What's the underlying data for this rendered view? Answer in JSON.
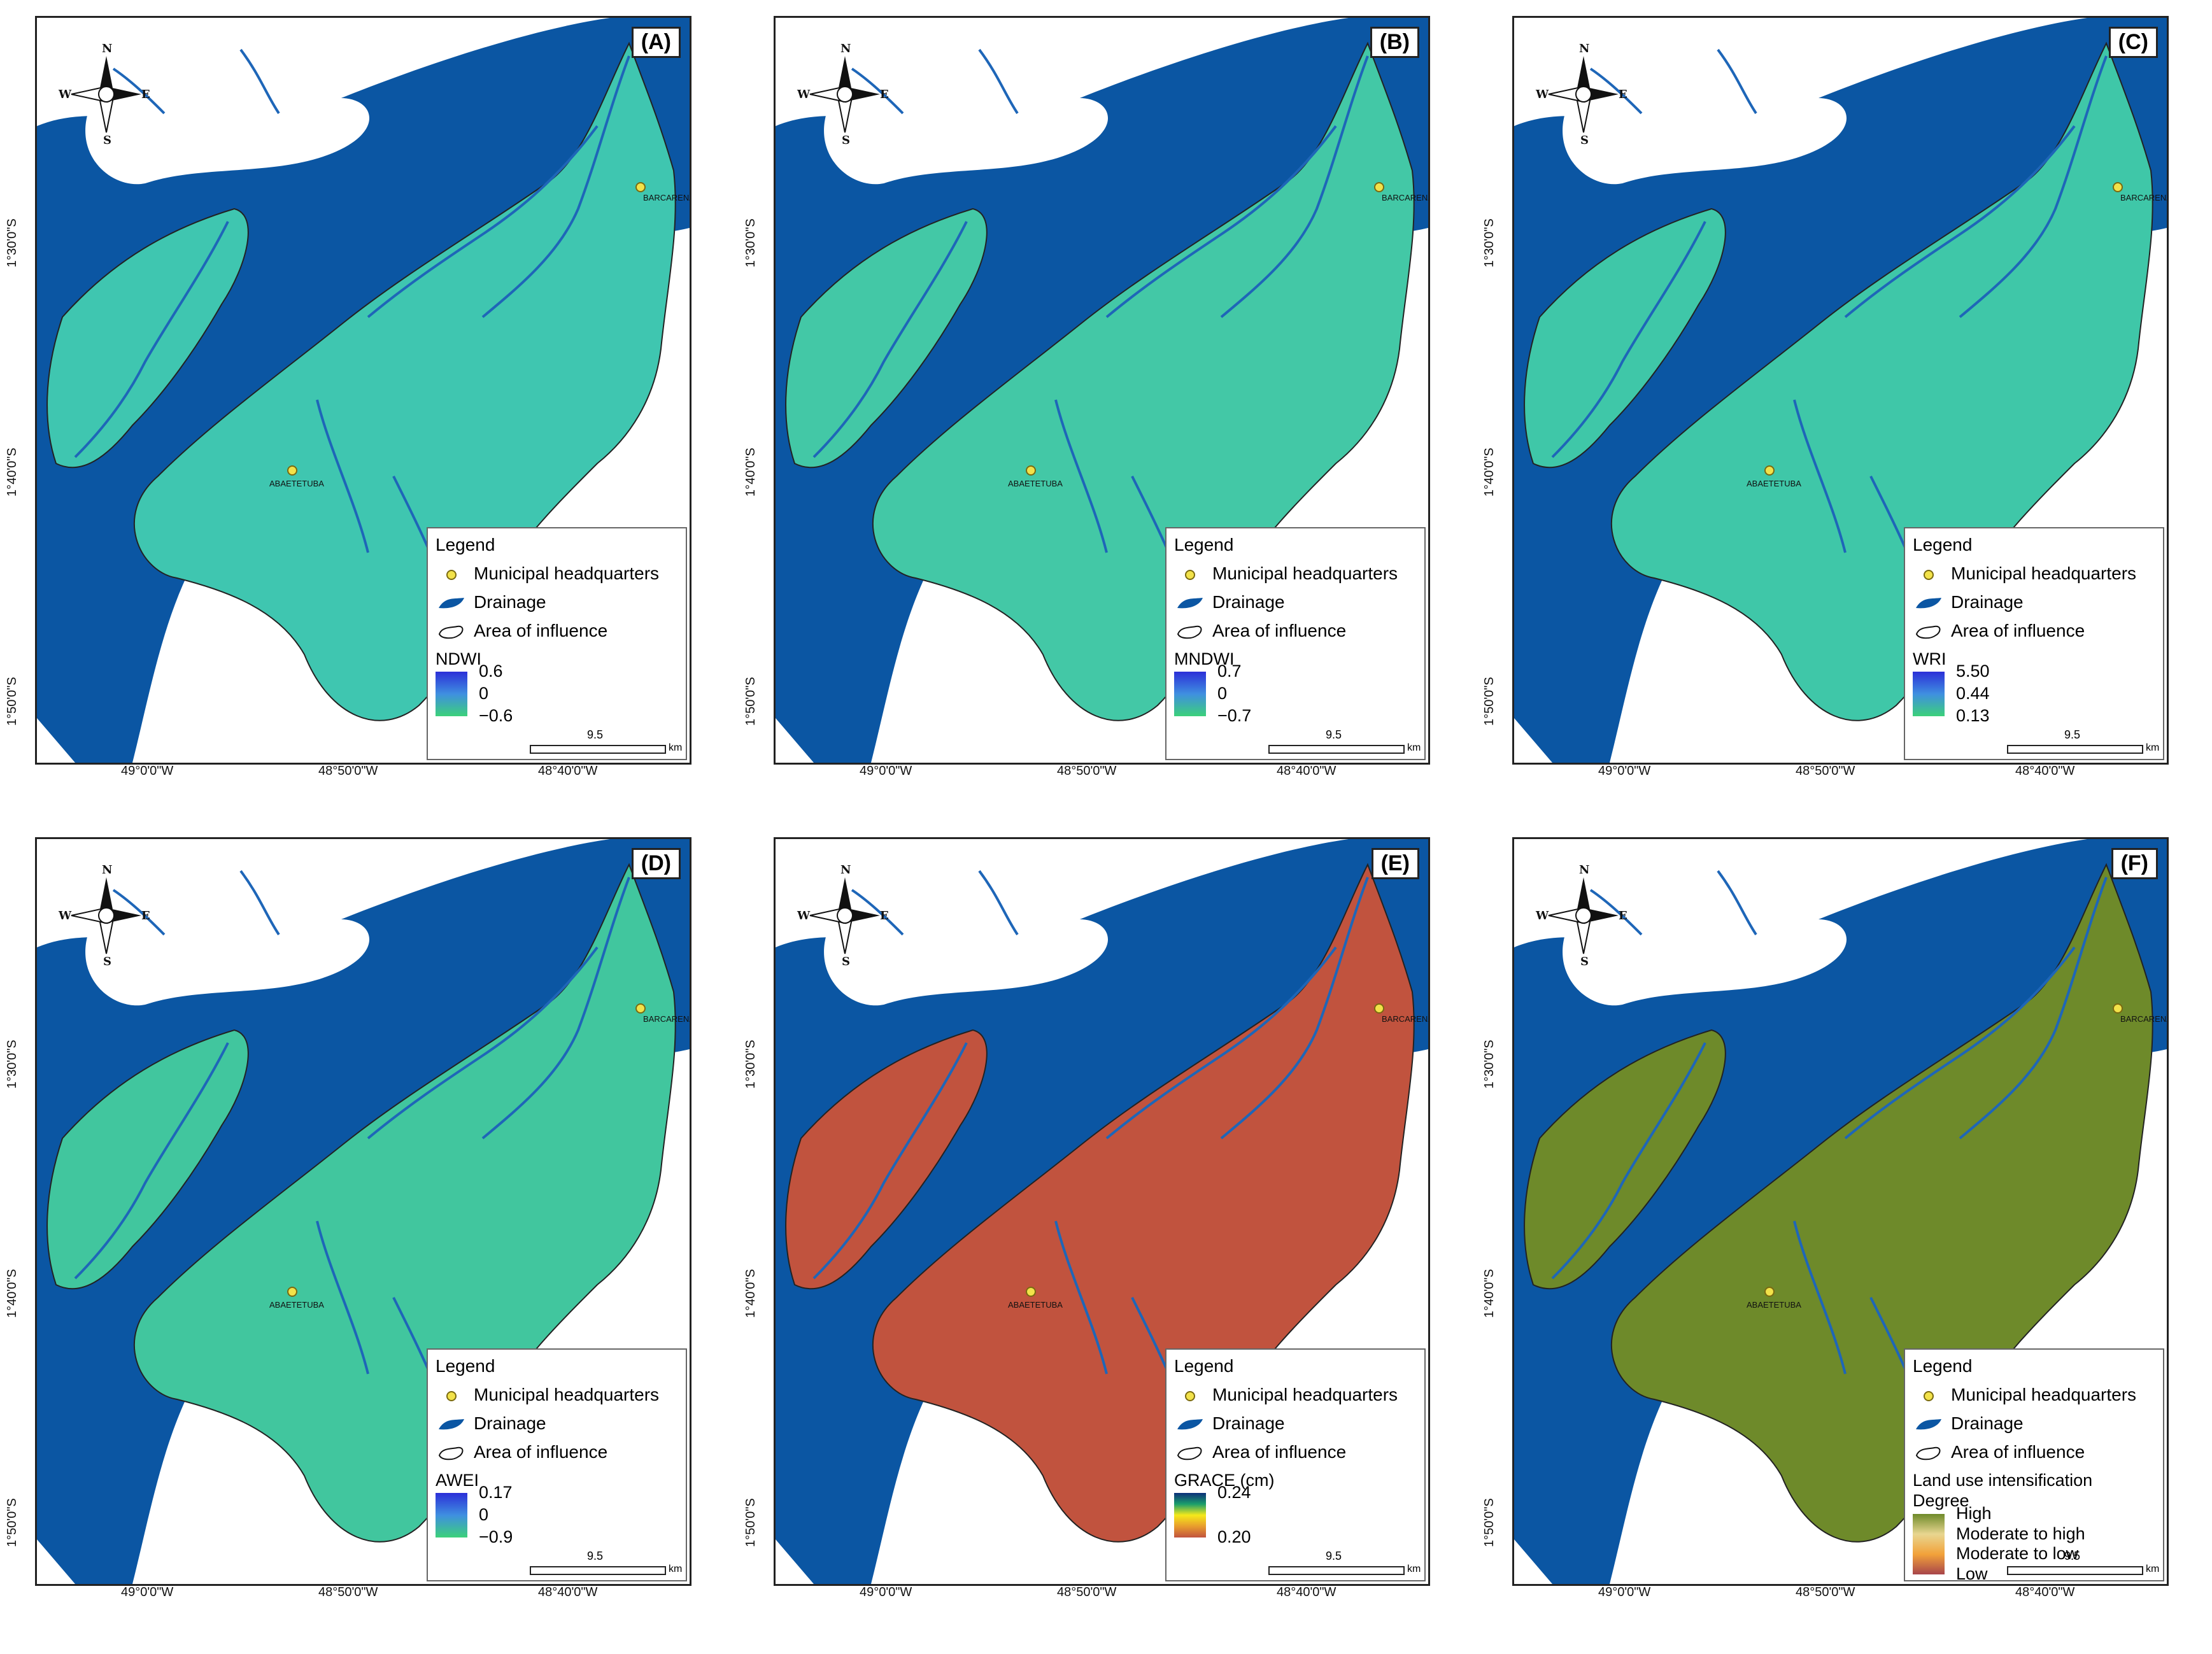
{
  "compass": {
    "n": "N",
    "s": "S",
    "e": "E",
    "w": "W"
  },
  "coords": {
    "lat": [
      "1°30'0\"S",
      "1°40'0\"S",
      "1°50'0\"S"
    ],
    "lon": [
      "49°0'0\"W",
      "48°50'0\"W",
      "48°40'0\"W"
    ]
  },
  "cities": {
    "barcarena": "BARCARENA",
    "abaetetuba": "ABAETETUBA"
  },
  "legend": {
    "title": "Legend",
    "headquarters": "Municipal headquarters",
    "drainage": "Drainage",
    "influence": "Area of influence"
  },
  "scale": {
    "value": "9.5",
    "unit": "km"
  },
  "panels": [
    {
      "label": "(A)",
      "index": "NDWI",
      "ticks": [
        "0.6",
        "0",
        "−0.6"
      ],
      "fill": "#3fc6b0"
    },
    {
      "label": "(B)",
      "index": "MNDWI",
      "ticks": [
        "0.7",
        "0",
        "−0.7"
      ],
      "fill": "#43c8a6"
    },
    {
      "label": "(C)",
      "index": "WRI",
      "ticks": [
        "5.50",
        "0.44",
        "0.13"
      ],
      "fill": "#3fc7a8"
    },
    {
      "label": "(D)",
      "index": "AWEI",
      "ticks": [
        "0.17",
        "0",
        "−0.9"
      ],
      "fill": "#41c69e"
    },
    {
      "label": "(E)",
      "index": "GRACE (cm)",
      "ticks": [
        "0.24",
        "0.20"
      ],
      "fill": "#c1533e"
    },
    {
      "label": "(F)",
      "index": "Land use intensification",
      "index2": "Degree",
      "ticks": [
        "High",
        "Moderate to high",
        "Moderate to low",
        "Low"
      ],
      "fill": "#6e8a2a"
    }
  ],
  "colors": {
    "water": "#0b56a3",
    "river": "#1e66b8"
  }
}
